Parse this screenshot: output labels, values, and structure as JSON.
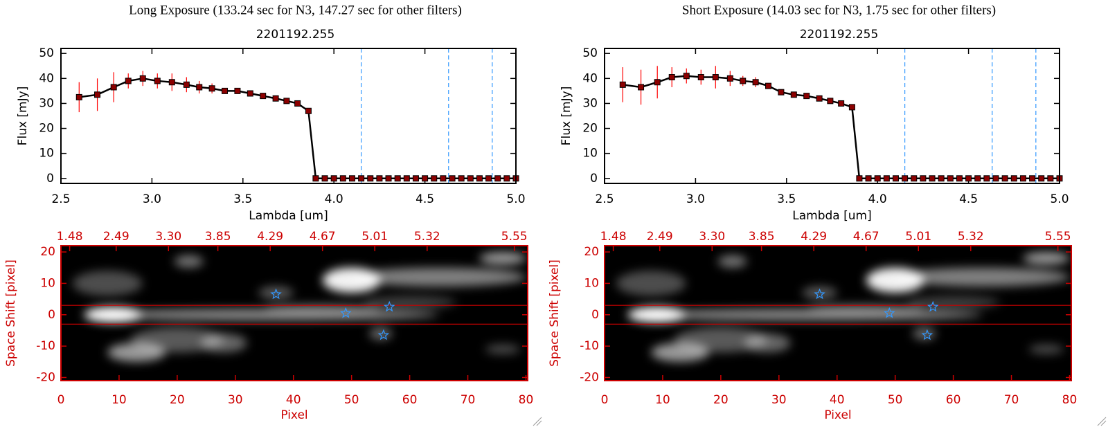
{
  "chart_data": [
    {
      "type": "line",
      "title": "Long Exposure (133.24 sec for N3, 147.27 sec for other filters)",
      "subtitle": "2201192.255",
      "xlabel": "Lambda [um]",
      "ylabel": "Flux [mJy]",
      "x": [
        2.6,
        2.7,
        2.79,
        2.87,
        2.95,
        3.03,
        3.11,
        3.19,
        3.26,
        3.33,
        3.4,
        3.47,
        3.54,
        3.61,
        3.68,
        3.74,
        3.8,
        3.86,
        3.9,
        3.95,
        4.0,
        4.05,
        4.1,
        4.15,
        4.2,
        4.25,
        4.3,
        4.35,
        4.4,
        4.45,
        4.5,
        4.55,
        4.6,
        4.65,
        4.7,
        4.75,
        4.8,
        4.85,
        4.9,
        4.95,
        5.0
      ],
      "values": [
        32.5,
        33.5,
        36.5,
        39,
        40,
        39,
        38.5,
        37.5,
        36.5,
        36,
        35,
        35,
        34,
        33,
        32,
        31,
        30,
        27,
        0,
        0,
        0,
        0,
        0,
        0,
        0,
        0,
        0,
        0,
        0,
        0,
        0,
        0,
        0,
        0,
        0,
        0,
        0,
        0,
        0,
        0,
        0
      ],
      "errors": [
        6,
        6.5,
        6,
        3,
        3,
        3,
        3.5,
        3,
        2.5,
        2,
        1,
        1,
        1,
        1,
        1,
        1,
        1,
        1,
        null,
        null,
        null,
        null,
        null,
        null,
        null,
        null,
        null,
        null,
        null,
        null,
        null,
        null,
        null,
        null,
        null,
        null,
        null,
        null,
        null,
        null,
        null
      ],
      "color": "#000000",
      "marker_color": "#8b0000",
      "error_color": "#ff0000",
      "vlines": [
        4.15,
        4.63,
        4.87
      ],
      "vline_color": "#3399ff",
      "xlim": [
        2.5,
        5.0
      ],
      "ylim": [
        -2,
        52
      ],
      "xticks": [
        2.5,
        {
          "value": 3,
          "label": "3.0"
        },
        3.5,
        {
          "value": 4,
          "label": "4.0"
        },
        4.5,
        {
          "value": 5,
          "label": "5.0"
        }
      ],
      "yticks": [
        0,
        10,
        20,
        30,
        40,
        50
      ]
    },
    {
      "type": "image",
      "xlabel": "Pixel",
      "ylabel": "Space Shift [pixel]",
      "xlim": [
        0,
        80.3
      ],
      "ylim": [
        -21,
        22
      ],
      "xticks": [
        0,
        10,
        20,
        30,
        40,
        50,
        60,
        70,
        80
      ],
      "yticks": [
        -20,
        -10,
        0,
        10,
        20
      ],
      "x2ticks": [
        {
          "value": 1.5,
          "label": "1.48"
        },
        {
          "value": 9.5,
          "label": "2.49"
        },
        {
          "value": 18.5,
          "label": "3.30"
        },
        {
          "value": 27,
          "label": "3.85"
        },
        {
          "value": 36,
          "label": "4.29"
        },
        {
          "value": 45,
          "label": "4.67"
        },
        {
          "value": 54,
          "label": "5.01"
        },
        {
          "value": 63,
          "label": "5.32"
        },
        {
          "value": 78,
          "label": "5.55"
        }
      ],
      "hlines": [
        3,
        -3
      ],
      "hline_color": "#cc0000",
      "axis_color": "#cc0000",
      "points": {
        "x": [
          37,
          49,
          56.5,
          55.5
        ],
        "y": [
          6.5,
          0.5,
          2.5,
          -6.5
        ],
        "color": "#3399ff"
      }
    },
    {
      "type": "line",
      "title": "Short Exposure (14.03 sec for N3, 1.75 sec for other filters)",
      "subtitle": "2201192.255",
      "xlabel": "Lambda [um]",
      "ylabel": "Flux [mJy]",
      "x": [
        2.6,
        2.7,
        2.79,
        2.87,
        2.95,
        3.03,
        3.11,
        3.19,
        3.26,
        3.33,
        3.4,
        3.47,
        3.54,
        3.61,
        3.68,
        3.74,
        3.8,
        3.86,
        3.9,
        3.95,
        4.0,
        4.05,
        4.1,
        4.15,
        4.2,
        4.25,
        4.3,
        4.35,
        4.4,
        4.45,
        4.5,
        4.55,
        4.6,
        4.65,
        4.7,
        4.75,
        4.8,
        4.85,
        4.9,
        4.95,
        5.0
      ],
      "values": [
        37.5,
        36.5,
        38.5,
        40.5,
        41,
        40.5,
        40.5,
        40,
        39,
        38.5,
        37,
        34.5,
        33.5,
        33,
        32,
        31,
        30,
        28.5,
        0,
        0,
        0,
        0,
        0,
        0,
        0,
        0,
        0,
        0,
        0,
        0,
        0,
        0,
        0,
        0,
        0,
        0,
        0,
        0,
        0,
        0,
        0
      ],
      "errors": [
        7,
        7,
        6.5,
        4,
        3,
        3,
        4.5,
        3,
        2,
        2,
        1,
        1,
        1,
        1,
        1,
        1,
        1,
        1,
        null,
        null,
        null,
        null,
        null,
        null,
        null,
        null,
        null,
        null,
        null,
        null,
        null,
        null,
        null,
        null,
        null,
        null,
        null,
        null,
        null,
        null,
        null
      ],
      "color": "#000000",
      "marker_color": "#8b0000",
      "error_color": "#ff0000",
      "vlines": [
        4.15,
        4.63,
        4.87
      ],
      "vline_color": "#3399ff",
      "xlim": [
        2.5,
        5.0
      ],
      "ylim": [
        -2,
        52
      ],
      "xticks": [
        2.5,
        {
          "value": 3,
          "label": "3.0"
        },
        3.5,
        {
          "value": 4,
          "label": "4.0"
        },
        4.5,
        {
          "value": 5,
          "label": "5.0"
        }
      ],
      "yticks": [
        0,
        10,
        20,
        30,
        40,
        50
      ]
    },
    {
      "type": "image",
      "xlabel": "Pixel",
      "ylabel": "Space Shift [pixel]",
      "xlim": [
        0,
        80.3
      ],
      "ylim": [
        -21,
        22
      ],
      "xticks": [
        0,
        10,
        20,
        30,
        40,
        50,
        60,
        70,
        80
      ],
      "yticks": [
        -20,
        -10,
        0,
        10,
        20
      ],
      "x2ticks": [
        {
          "value": 1.5,
          "label": "1.48"
        },
        {
          "value": 9.5,
          "label": "2.49"
        },
        {
          "value": 18.5,
          "label": "3.30"
        },
        {
          "value": 27,
          "label": "3.85"
        },
        {
          "value": 36,
          "label": "4.29"
        },
        {
          "value": 45,
          "label": "4.67"
        },
        {
          "value": 54,
          "label": "5.01"
        },
        {
          "value": 63,
          "label": "5.32"
        },
        {
          "value": 78,
          "label": "5.55"
        }
      ],
      "hlines": [
        3,
        -3
      ],
      "hline_color": "#cc0000",
      "axis_color": "#cc0000",
      "points": {
        "x": [
          37,
          49,
          56.5,
          55.5
        ],
        "y": [
          6.5,
          0.5,
          2.5,
          -6.5
        ],
        "color": "#3399ff"
      }
    }
  ]
}
